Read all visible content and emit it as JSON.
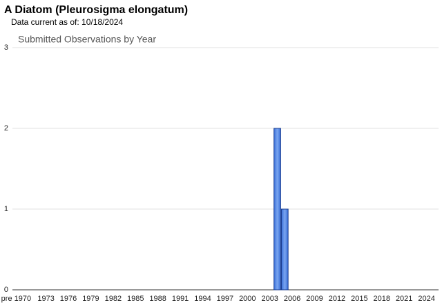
{
  "chart_data": {
    "type": "bar",
    "title": "A Diatom   (Pleurosigma elongatum)",
    "subtitle": "Data current as of: 10/18/2024",
    "chart_title": "Submitted Observations by Year",
    "categories": [
      "pre 1970",
      null,
      null,
      null,
      "1973",
      null,
      null,
      "1976",
      null,
      null,
      "1979",
      null,
      null,
      "1982",
      null,
      null,
      "1985",
      null,
      null,
      "1988",
      null,
      null,
      "1991",
      null,
      null,
      "1994",
      null,
      null,
      "1997",
      null,
      null,
      "2000",
      null,
      null,
      "2003",
      null,
      null,
      "2006",
      null,
      null,
      "2009",
      null,
      null,
      "2012",
      null,
      null,
      "2015",
      null,
      null,
      "2018",
      null,
      null,
      "2021",
      null,
      null,
      "2024"
    ],
    "values": [
      0,
      0,
      0,
      0,
      0,
      0,
      0,
      0,
      0,
      0,
      0,
      0,
      0,
      0,
      0,
      0,
      0,
      0,
      0,
      0,
      0,
      0,
      0,
      0,
      0,
      0,
      0,
      0,
      0,
      0,
      0,
      0,
      0,
      0,
      0,
      2,
      1,
      0,
      0,
      0,
      0,
      0,
      0,
      0,
      0,
      0,
      0,
      0,
      0,
      0,
      0,
      0,
      0,
      0,
      0,
      0
    ],
    "color": "#4f7fdf",
    "ylim": [
      0,
      3
    ],
    "yticks": [
      0,
      1,
      2,
      3
    ],
    "grid": true
  }
}
